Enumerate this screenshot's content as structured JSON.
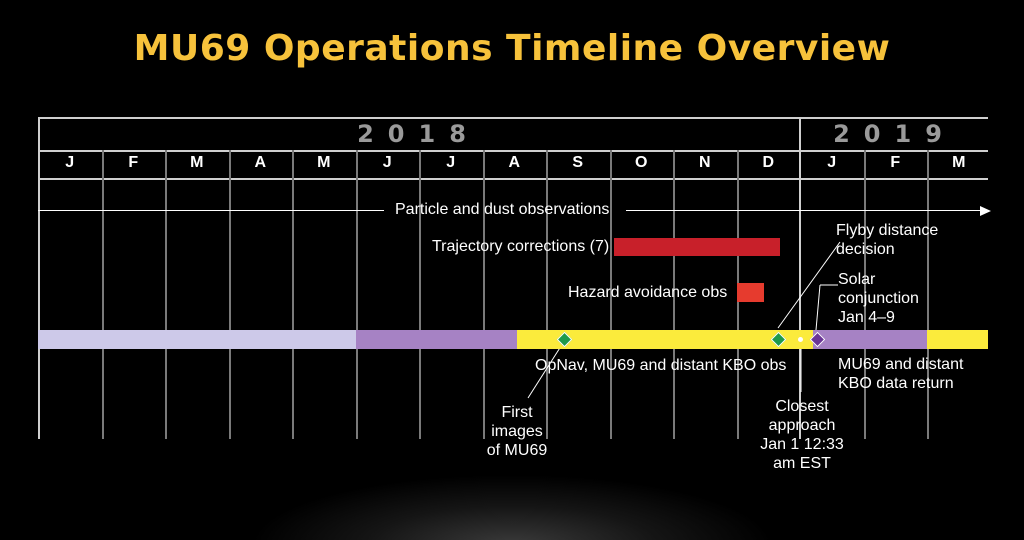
{
  "title": "MU69 Operations Timeline Overview",
  "years": [
    "2018",
    "2019"
  ],
  "months": [
    "J",
    "F",
    "M",
    "A",
    "M",
    "J",
    "J",
    "A",
    "S",
    "O",
    "N",
    "D",
    "J",
    "F",
    "M"
  ],
  "activities": {
    "particle": "Particle and dust observations",
    "trajectory": "Trajectory corrections (7)",
    "hazard": "Hazard avoidance obs",
    "flyby": "Flyby distance decision",
    "solar": "Solar conjunction Jan 4–9",
    "opnav": "OpNav, MU69 and distant KBO obs",
    "datareturn": "MU69 and distant KBO data return",
    "first_images": "First images of MU69",
    "closest": "Closest approach Jan 1 12:33 am EST"
  },
  "colors": {
    "title": "#f7c23b",
    "phase_lavender": "#cdc9e9",
    "phase_purple": "#a682c4",
    "phase_yellow": "#fbeb3c",
    "trajectory_bar": "#c8202a",
    "hazard_bar": "#e63b2e",
    "milestone_green": "#1e9a4a",
    "milestone_purple": "#6a3596"
  }
}
